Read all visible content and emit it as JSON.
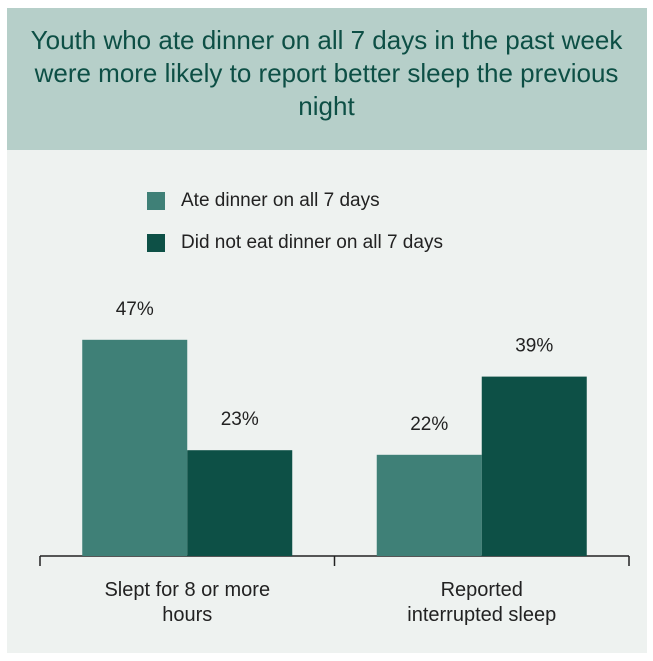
{
  "chart_data": {
    "type": "bar",
    "title": "Youth who ate dinner on all 7 days in the past week were more likely to report better sleep the previous night",
    "categories": [
      "Slept for 8 or more hours",
      "Reported interrupted sleep"
    ],
    "series": [
      {
        "name": "Ate dinner on all 7 days",
        "color": "#3f8077",
        "values": [
          47,
          22
        ],
        "value_labels": [
          "47%",
          "22%"
        ]
      },
      {
        "name": "Did not eat dinner on all 7 days",
        "color": "#0d5046",
        "values": [
          23,
          39
        ],
        "value_labels": [
          "23%",
          "39%"
        ]
      }
    ]
  }
}
